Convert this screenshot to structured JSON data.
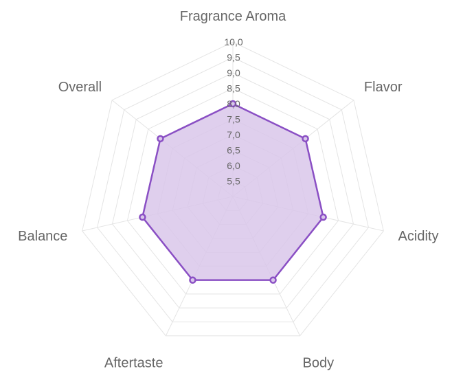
{
  "chart_data": {
    "type": "radar",
    "axes": [
      "Fragrance Aroma",
      "Flavor",
      "Acidity",
      "Body",
      "Aftertaste",
      "Balance",
      "Overall"
    ],
    "values": [
      8.0,
      8.0,
      8.0,
      8.0,
      8.0,
      8.0,
      8.0
    ],
    "r_min": 5.0,
    "r_max": 10.0,
    "r_ticks": [
      "5,5",
      "6,0",
      "6,5",
      "7,0",
      "7,5",
      "8,0",
      "8,5",
      "9,0",
      "9,5",
      "10,0"
    ],
    "r_tick_values": [
      5.5,
      6.0,
      6.5,
      7.0,
      7.5,
      8.0,
      8.5,
      9.0,
      9.5,
      10.0
    ],
    "grid": true,
    "legend": "none",
    "colors": {
      "series_line": "#8a4fc4",
      "series_fill": "#d9c7ea",
      "grid": "#e4e4e4",
      "text": "#666666"
    }
  }
}
